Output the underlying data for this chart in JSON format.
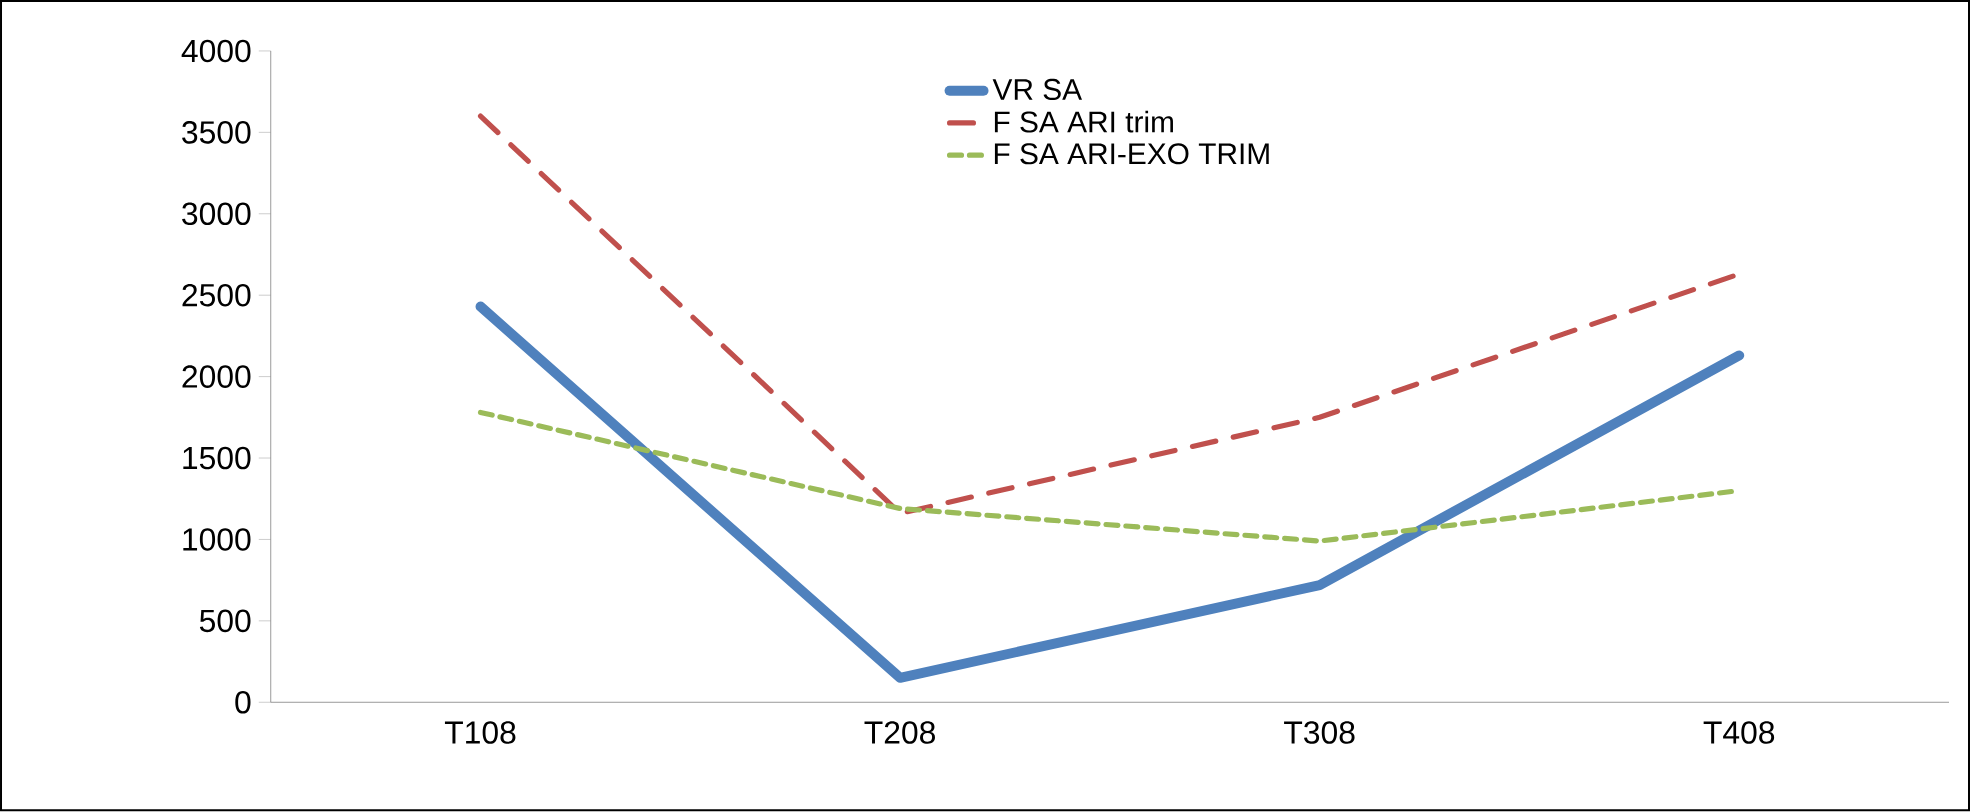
{
  "chart_data": {
    "type": "line",
    "categories": [
      "T108",
      "T208",
      "T308",
      "T408"
    ],
    "series": [
      {
        "name": "VR SA",
        "color": "#4f81bd",
        "values": [
          2430,
          150,
          720,
          2130
        ],
        "line_style": "solid"
      },
      {
        "name": "F SA ARI trim",
        "color": "#c0504d",
        "values": [
          3600,
          1160,
          1750,
          2630
        ],
        "line_style": "dashed"
      },
      {
        "name": "F SA ARI-EXO TRIM",
        "color": "#9bbb59",
        "values": [
          1780,
          1190,
          990,
          1300
        ],
        "line_style": "dotted"
      }
    ],
    "ylim": [
      0,
      4000
    ],
    "yticks": [
      0,
      500,
      1000,
      1500,
      2000,
      2500,
      3000,
      3500,
      4000
    ],
    "grid": false,
    "legend": "top",
    "marker": "none"
  }
}
